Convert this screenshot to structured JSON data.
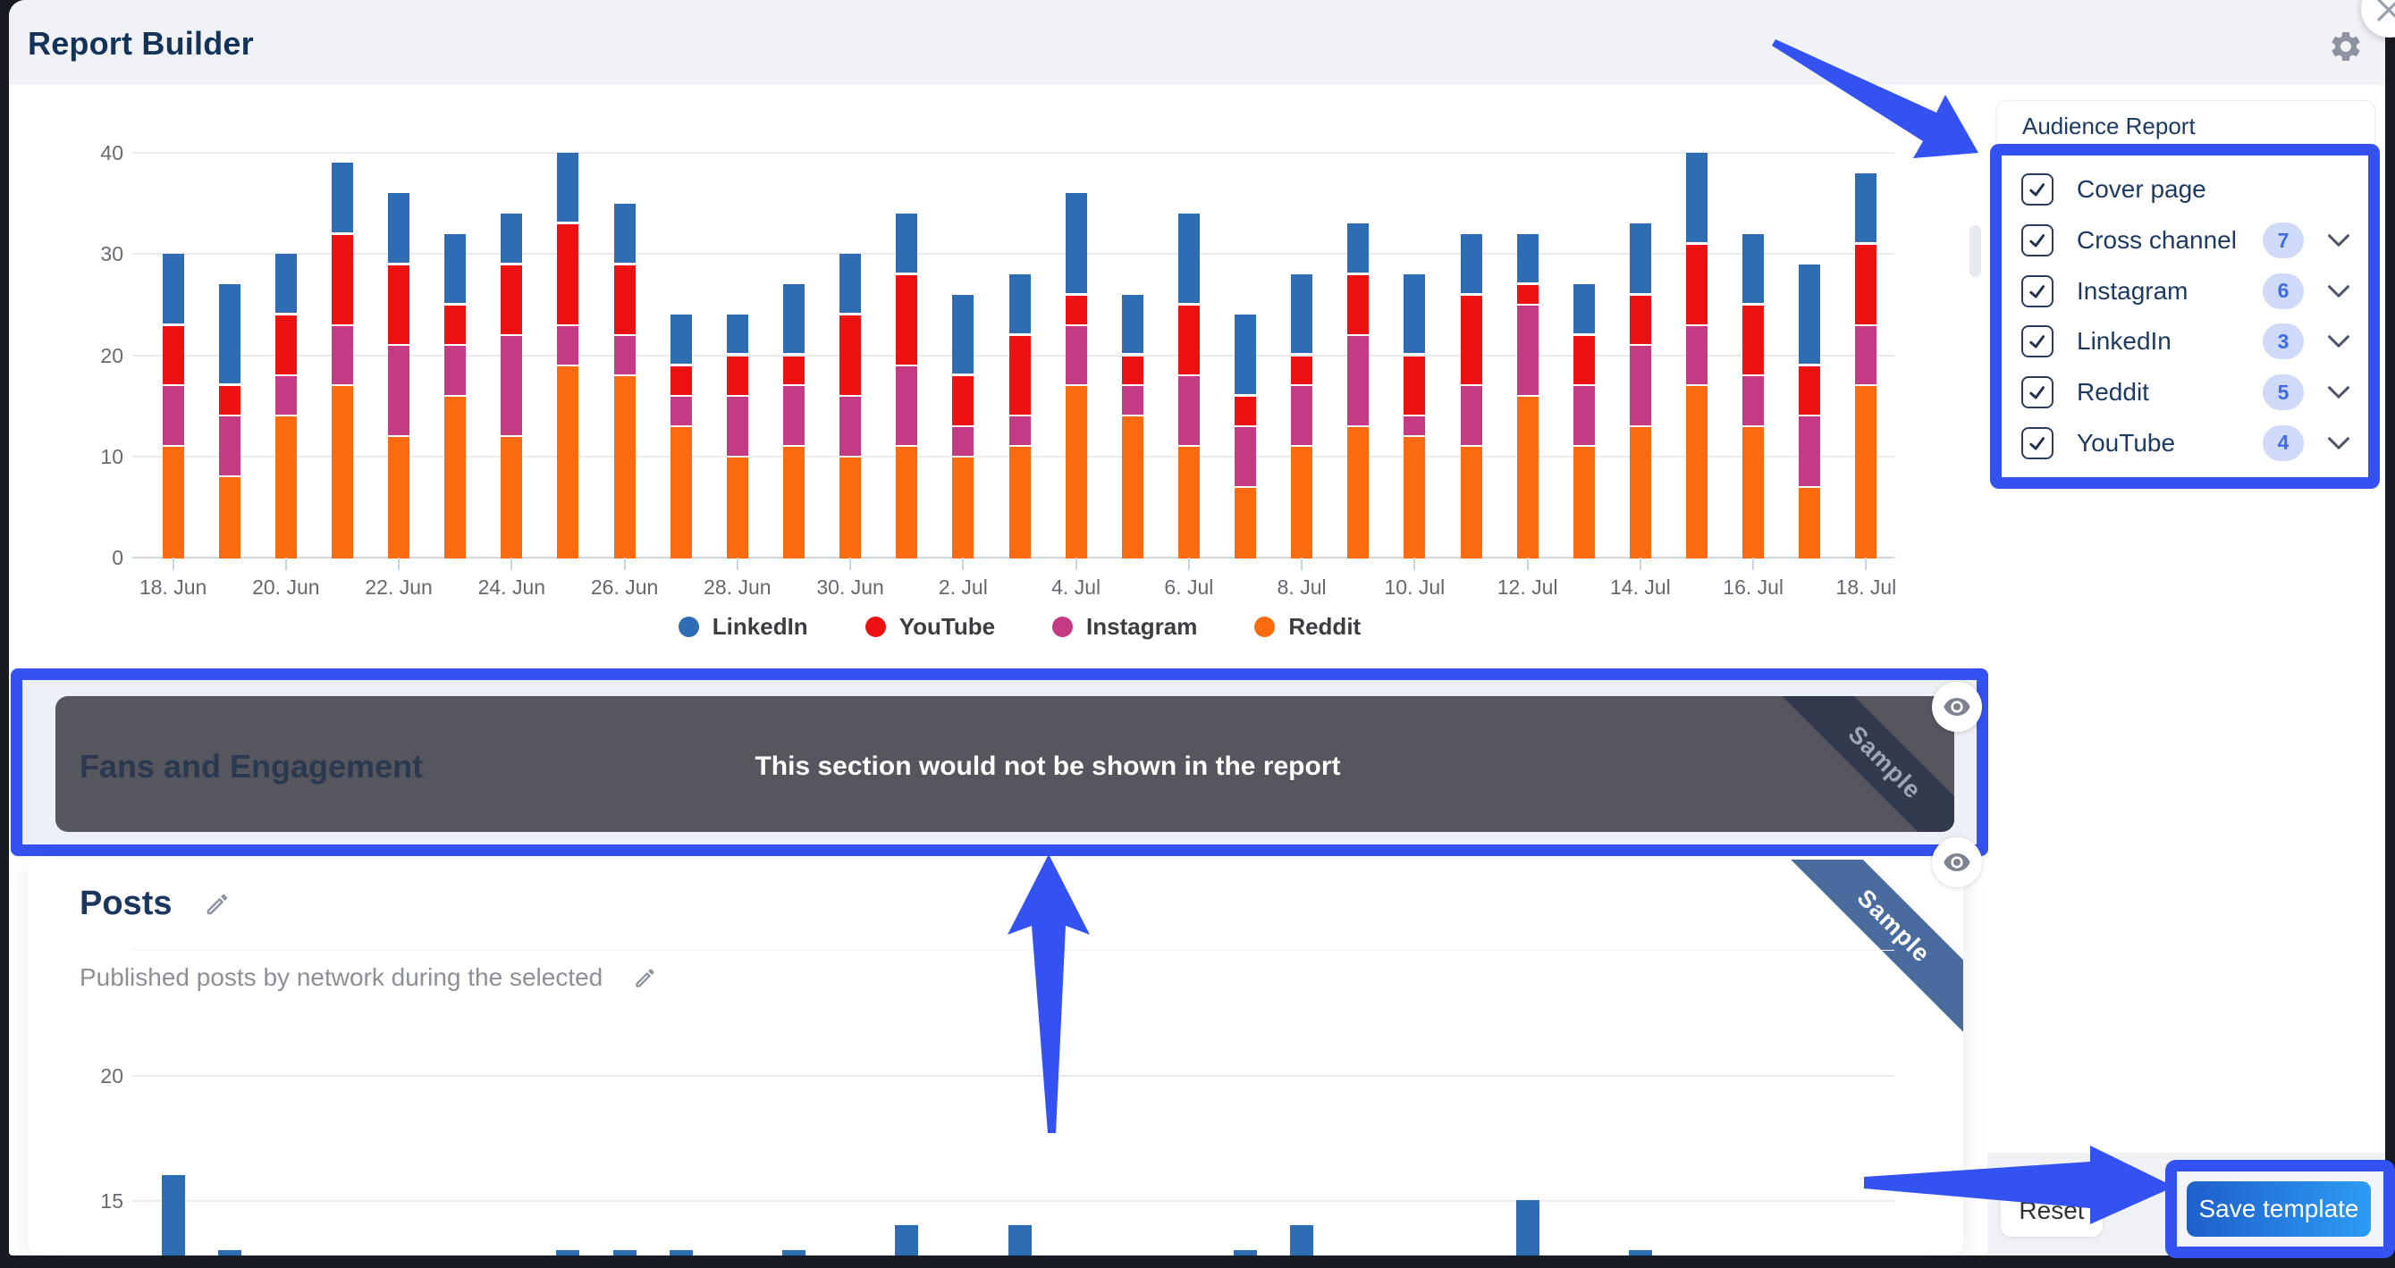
{
  "header": {
    "title": "Report Builder",
    "gear_icon": "gear-icon",
    "close_icon": "close-icon"
  },
  "sidebar": {
    "panel_title": "Audience Report",
    "items": [
      {
        "label": "Cover page",
        "checked": true,
        "badge": "",
        "chevron": false
      },
      {
        "label": "Cross channel",
        "checked": true,
        "badge": "7",
        "chevron": true
      },
      {
        "label": "Instagram",
        "checked": true,
        "badge": "6",
        "chevron": true
      },
      {
        "label": "LinkedIn",
        "checked": true,
        "badge": "3",
        "chevron": true
      },
      {
        "label": "Reddit",
        "checked": true,
        "badge": "5",
        "chevron": true
      },
      {
        "label": "YouTube",
        "checked": true,
        "badge": "4",
        "chevron": true
      }
    ],
    "badge_bg": "#cfdaf8",
    "badge_text_color": "#3f6ce2"
  },
  "sections": {
    "fans": {
      "title": "Fans and Engagement",
      "overlay_message": "This section would not be shown in the report",
      "ribbon_label": "Sample",
      "eye_icon": "eye-icon"
    },
    "posts": {
      "title": "Posts",
      "description": "Published posts by network during the selected",
      "ribbon_label": "Sample",
      "eye_icon": "eye-icon"
    }
  },
  "footer": {
    "reset_label": "Reset",
    "save_label": "Save template"
  },
  "colors": {
    "annotation_blue": "#3451f1",
    "save_gradient": [
      "#1e5fc9",
      "#2d9cf5"
    ],
    "dark_overlay_card": "#55565e",
    "fans_ribbon_bg": "#30374c",
    "posts_ribbon_bg": "#4a6b9d",
    "header_bg": "#f1f2f6",
    "navy_text": "#1d3a61"
  },
  "chart_data": [
    {
      "type": "bar",
      "stacked": true,
      "title": "",
      "categories": [
        "18. Jun",
        "19. Jun",
        "20. Jun",
        "21. Jun",
        "22. Jun",
        "23. Jun",
        "24. Jun",
        "25. Jun",
        "26. Jun",
        "27. Jun",
        "28. Jun",
        "29. Jun",
        "30. Jun",
        "1. Jul",
        "2. Jul",
        "3. Jul",
        "4. Jul",
        "5. Jul",
        "6. Jul",
        "7. Jul",
        "8. Jul",
        "9. Jul",
        "10. Jul",
        "11. Jul",
        "12. Jul",
        "13. Jul",
        "14. Jul",
        "15. Jul",
        "16. Jul",
        "17. Jul",
        "18. Jul"
      ],
      "xtick_labels": [
        "18. Jun",
        "20. Jun",
        "22. Jun",
        "24. Jun",
        "26. Jun",
        "28. Jun",
        "30. Jun",
        "2. Jul",
        "4. Jul",
        "6. Jul",
        "8. Jul",
        "10. Jul",
        "12. Jul",
        "14. Jul",
        "16. Jul",
        "18. Jul"
      ],
      "series": [
        {
          "name": "Reddit",
          "color": "#fa6a10",
          "values": [
            11,
            8,
            14,
            17,
            12,
            16,
            12,
            19,
            18,
            13,
            10,
            11,
            10,
            11,
            10,
            11,
            17,
            14,
            11,
            7,
            11,
            13,
            12,
            11,
            16,
            11,
            13,
            17,
            13,
            7,
            17
          ]
        },
        {
          "name": "Instagram",
          "color": "#c43a83",
          "values": [
            6,
            6,
            4,
            6,
            9,
            5,
            10,
            4,
            4,
            3,
            6,
            6,
            6,
            8,
            3,
            3,
            6,
            3,
            7,
            6,
            6,
            9,
            2,
            6,
            9,
            6,
            8,
            6,
            5,
            7,
            6
          ]
        },
        {
          "name": "YouTube",
          "color": "#ee1111",
          "values": [
            6,
            3,
            6,
            9,
            8,
            4,
            7,
            10,
            7,
            3,
            4,
            3,
            8,
            9,
            5,
            8,
            3,
            3,
            7,
            3,
            3,
            6,
            6,
            9,
            2,
            5,
            5,
            8,
            7,
            5,
            8
          ]
        },
        {
          "name": "LinkedIn",
          "color": "#2e6cb4",
          "values": [
            7,
            10,
            6,
            7,
            7,
            7,
            5,
            7,
            6,
            5,
            4,
            7,
            6,
            6,
            8,
            6,
            10,
            6,
            9,
            8,
            8,
            5,
            8,
            6,
            5,
            5,
            7,
            9,
            7,
            10,
            7
          ]
        }
      ],
      "stack_order_bottom_to_top": [
        "Reddit",
        "Instagram",
        "YouTube",
        "LinkedIn"
      ],
      "legend": [
        "LinkedIn",
        "YouTube",
        "Instagram",
        "Reddit"
      ],
      "legend_position": "bottom-center",
      "ylim": [
        0,
        40
      ],
      "yticks": [
        0,
        10,
        20,
        30,
        40
      ],
      "grid": true
    },
    {
      "type": "bar",
      "stacked": false,
      "title": "Posts (partially visible, clipped at bottom of window)",
      "series_name": "LinkedIn",
      "color": "#2e6cb4",
      "yticks_labeled": [
        20,
        15
      ],
      "gridlines": [
        25,
        20,
        15
      ],
      "visible_y_range": [
        12.8,
        21.5
      ],
      "bars": [
        {
          "category": "18. Jun",
          "value": 16
        },
        {
          "category": "19. Jun",
          "value": 13
        },
        {
          "category": "25. Jun",
          "value": 13
        },
        {
          "category": "26. Jun",
          "value": 13
        },
        {
          "category": "27. Jun",
          "value": 13
        },
        {
          "category": "29. Jun",
          "value": 13
        },
        {
          "category": "1. Jul",
          "value": 14
        },
        {
          "category": "3. Jul",
          "value": 14
        },
        {
          "category": "7. Jul",
          "value": 13
        },
        {
          "category": "8. Jul",
          "value": 14
        },
        {
          "category": "12. Jul",
          "value": 15
        },
        {
          "category": "14. Jul",
          "value": 13
        }
      ],
      "grid": true
    }
  ]
}
